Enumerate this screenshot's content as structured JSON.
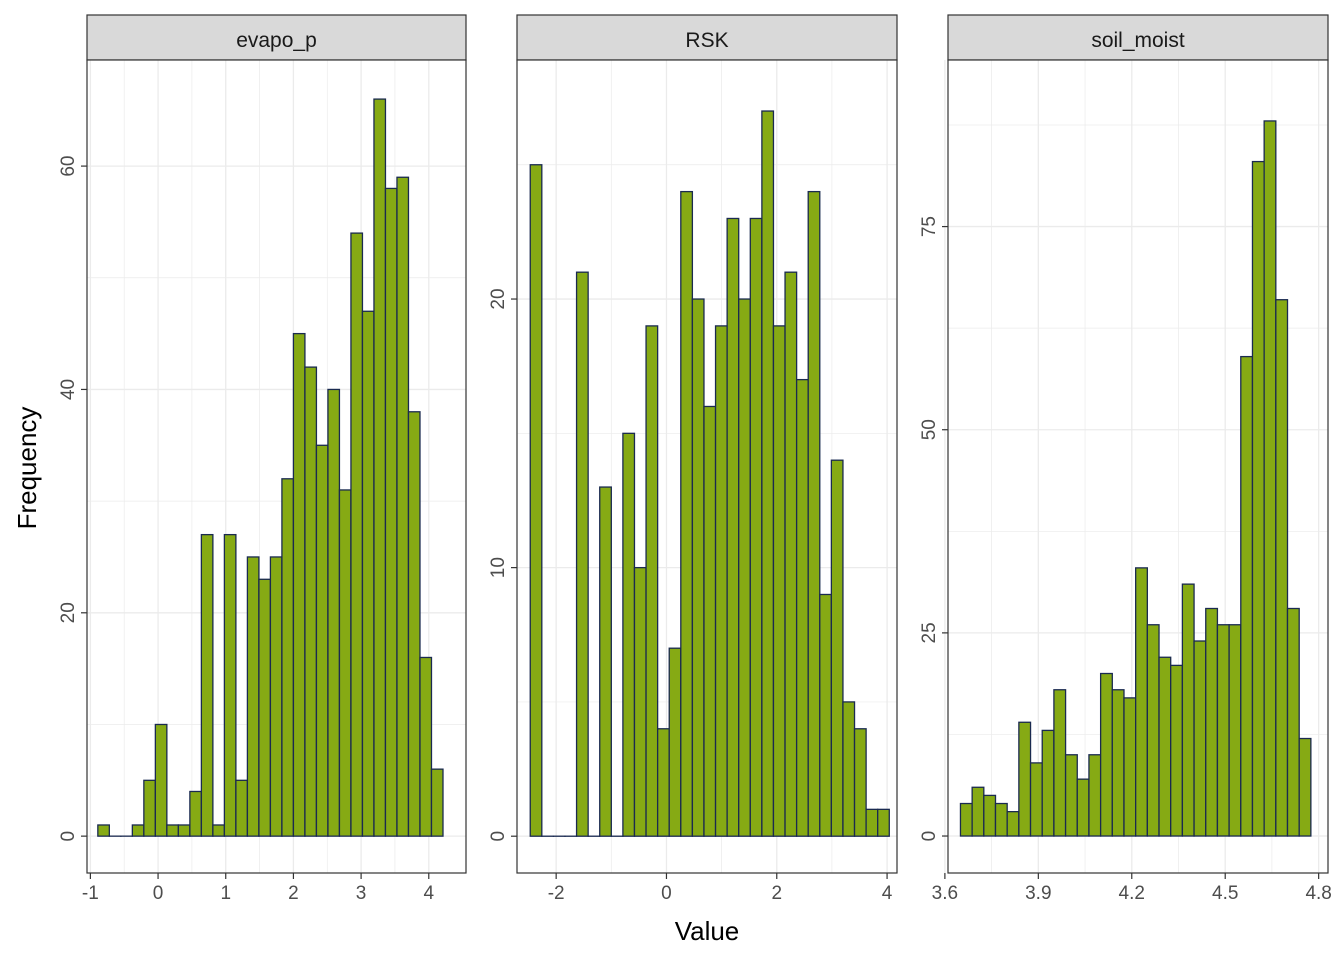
{
  "figure": {
    "xlabel": "Value",
    "ylabel": "Frequency",
    "bar_fill": "#86aa14",
    "bar_stroke": "#1a2a50",
    "strip_fill": "#d9d9d9",
    "grid_color": "#ebebeb",
    "panel_border": "#333333",
    "tick_text_color": "#4d4d4d"
  },
  "chart_data": [
    {
      "type": "bar",
      "title": "evapo_p",
      "xlabel": "Value",
      "ylabel": "Frequency",
      "xlim": [
        -1.05,
        4.55
      ],
      "ylim": [
        -3.3,
        69.5
      ],
      "xticks": [
        -1,
        0,
        1,
        2,
        3,
        4
      ],
      "xtick_labels": [
        "-1",
        "0",
        "1",
        "2",
        "3",
        "4"
      ],
      "yticks": [
        0,
        20,
        40,
        60
      ],
      "ytick_labels": [
        "0",
        "20",
        "40",
        "60"
      ],
      "bin_start": -0.89,
      "bin_width": 0.17,
      "values": [
        1,
        0,
        0,
        1,
        5,
        10,
        1,
        1,
        4,
        27,
        1,
        27,
        5,
        25,
        23,
        25,
        32,
        45,
        42,
        35,
        40,
        31,
        54,
        47,
        66,
        58,
        59,
        38,
        16,
        6
      ]
    },
    {
      "type": "bar",
      "title": "RSK",
      "xlabel": "Value",
      "ylabel": "Frequency",
      "xlim": [
        -2.71,
        4.18
      ],
      "ylim": [
        -1.37,
        28.9
      ],
      "xticks": [
        -2,
        0,
        2,
        4
      ],
      "xtick_labels": [
        "-2",
        "0",
        "2",
        "4"
      ],
      "yticks": [
        0,
        10,
        20
      ],
      "ytick_labels": [
        "0",
        "10",
        "20"
      ],
      "bin_start": -2.47,
      "bin_width": 0.21,
      "values": [
        25,
        0,
        0,
        0,
        21,
        0,
        13,
        0,
        15,
        10,
        19,
        4,
        7,
        24,
        20,
        16,
        19,
        23,
        20,
        23,
        27,
        19,
        21,
        17,
        24,
        9,
        14,
        5,
        4,
        1,
        1
      ]
    },
    {
      "type": "bar",
      "title": "soil_moist",
      "xlabel": "Value",
      "ylabel": "Frequency",
      "xlim": [
        3.61,
        4.83
      ],
      "ylim": [
        -4.55,
        95.5
      ],
      "xticks": [
        3.6,
        3.9,
        4.2,
        4.5,
        4.8
      ],
      "xtick_labels": [
        "3.6",
        "3.9",
        "4.2",
        "4.5",
        "4.8"
      ],
      "yticks": [
        0,
        25,
        50,
        75
      ],
      "ytick_labels": [
        "0",
        "25",
        "50",
        "75"
      ],
      "bin_start": 3.65,
      "bin_width": 0.0375,
      "values": [
        4,
        6,
        5,
        4,
        3,
        14,
        9,
        13,
        18,
        10,
        7,
        10,
        20,
        18,
        17,
        33,
        26,
        22,
        21,
        31,
        24,
        28,
        26,
        26,
        59,
        83,
        88,
        66,
        28,
        12
      ]
    }
  ]
}
